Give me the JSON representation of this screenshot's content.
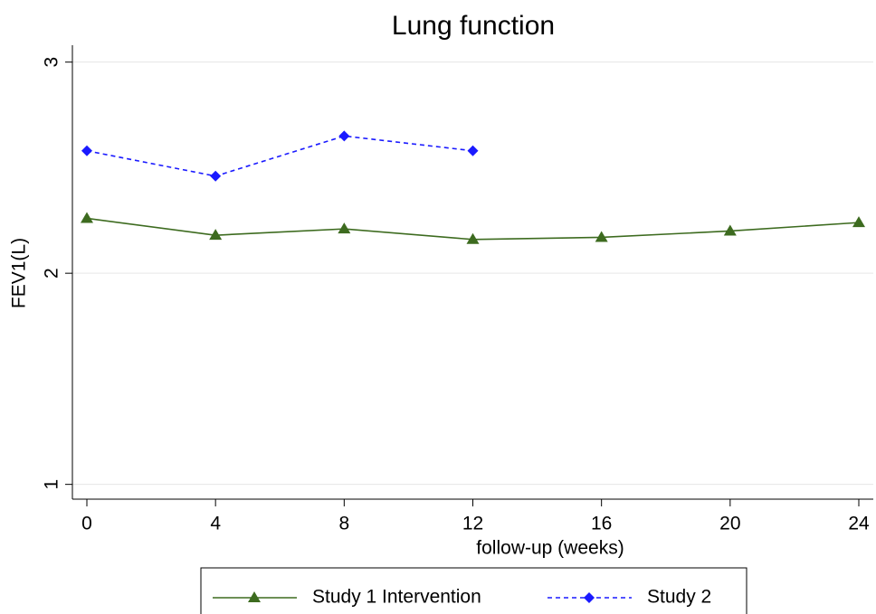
{
  "chart_data": {
    "type": "line",
    "title": "Lung function",
    "x_label": "follow-up (weeks)",
    "y_label": "FEV1(L)",
    "x": [
      0,
      4,
      8,
      12,
      16,
      20,
      24
    ],
    "series": [
      {
        "name": "Study 1 Intervention",
        "color": "#3d6b1f",
        "marker": "triangle",
        "dash": "solid",
        "values": [
          2.26,
          2.18,
          2.21,
          2.16,
          2.17,
          2.2,
          2.24
        ]
      },
      {
        "name": "Study 2",
        "color": "#1a1aff",
        "marker": "diamond",
        "dash": "dashed",
        "values": [
          2.58,
          2.46,
          2.65,
          2.58,
          null,
          null,
          null
        ]
      }
    ],
    "xlim": [
      -0.45,
      24.45
    ],
    "ylim": [
      0.93,
      3.08
    ],
    "xticks": [
      0,
      4,
      8,
      12,
      16,
      20,
      24
    ],
    "yticks": [
      1,
      2,
      3
    ],
    "grid": true,
    "legend": "bottom"
  }
}
